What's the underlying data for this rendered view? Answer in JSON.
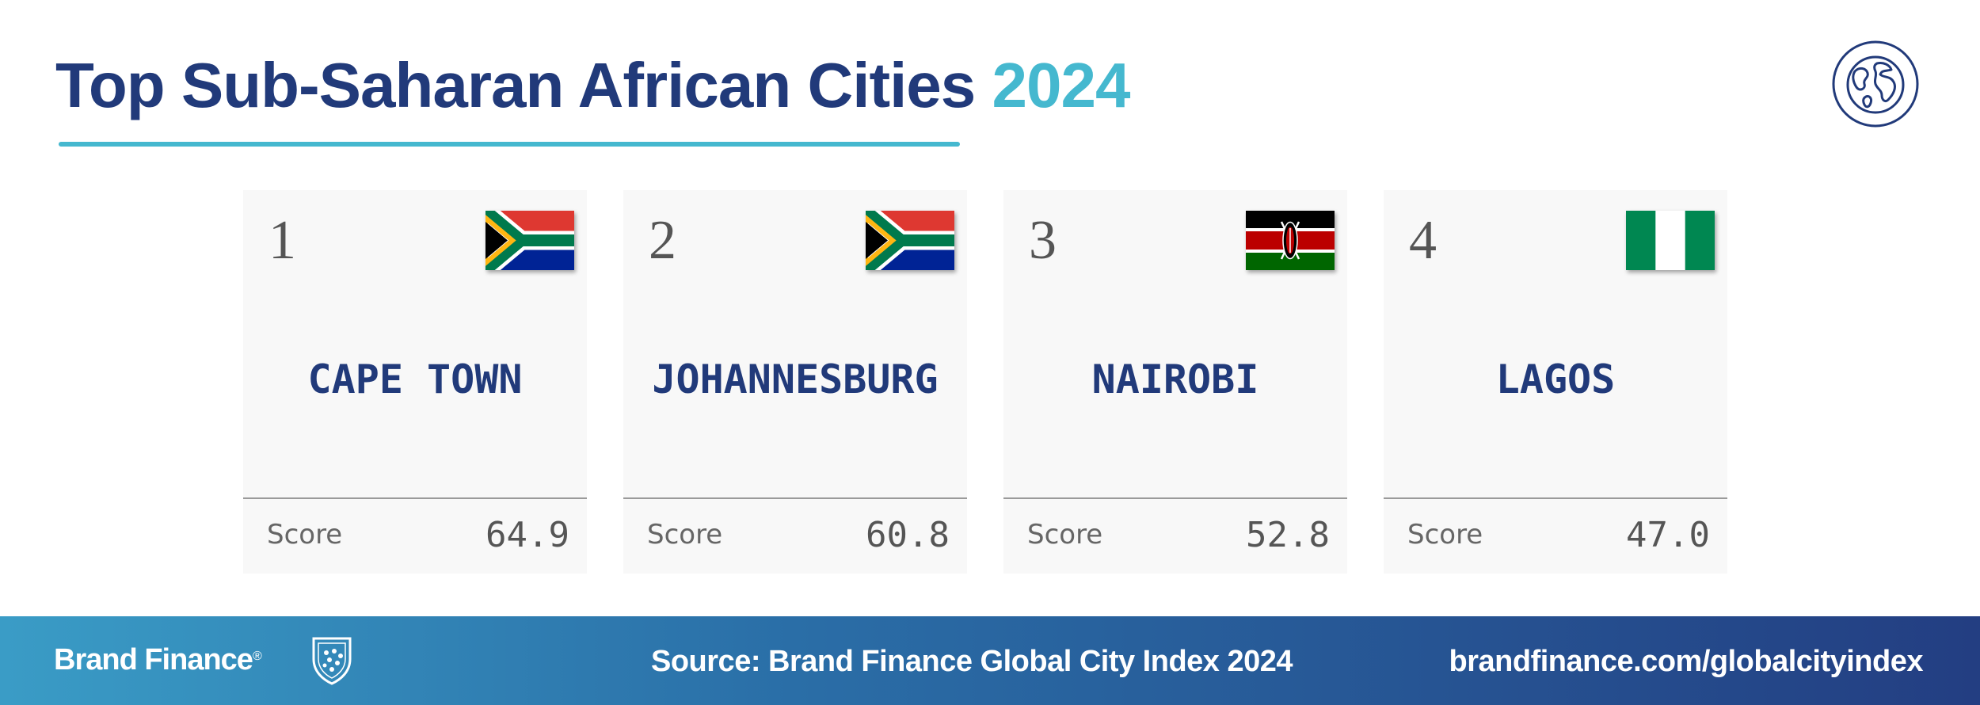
{
  "header": {
    "title": "Top Sub-Saharan African Cities",
    "year": "2024",
    "icon": "globe-icon"
  },
  "colors": {
    "navy": "#213a7a",
    "accent": "#45b8cf",
    "card_bg": "#f8f8f8"
  },
  "cards": [
    {
      "rank": "1",
      "city": "CAPE TOWN",
      "score_label": "Score",
      "score": "64.9",
      "flag": "south-africa-flag"
    },
    {
      "rank": "2",
      "city": "JOHANNESBURG",
      "score_label": "Score",
      "score": "60.8",
      "flag": "south-africa-flag"
    },
    {
      "rank": "3",
      "city": "NAIROBI",
      "score_label": "Score",
      "score": "52.8",
      "flag": "kenya-flag"
    },
    {
      "rank": "4",
      "city": "LAGOS",
      "score_label": "Score",
      "score": "47.0",
      "flag": "nigeria-flag"
    }
  ],
  "footer": {
    "logo_text": "Brand Finance",
    "logo_mark": "®",
    "crest_icon": "shield-crest-icon",
    "source": "Source: Brand Finance Global City Index 2024",
    "url": "brandfinance.com/globalcityindex"
  }
}
